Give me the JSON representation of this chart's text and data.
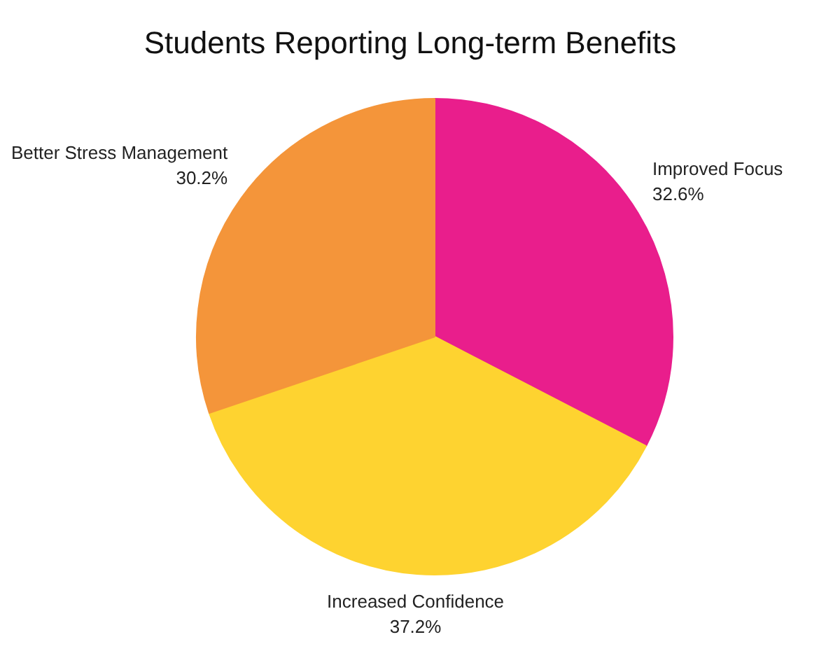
{
  "chart_data": {
    "type": "pie",
    "title": "Students Reporting Long-term Benefits",
    "categories": [
      "Improved Focus",
      "Increased Confidence",
      "Better Stress Management"
    ],
    "values": [
      32.6,
      37.2,
      30.2
    ],
    "value_labels": [
      "32.6%",
      "37.2%",
      "30.2%"
    ],
    "colors": [
      "#e91e8c",
      "#fed330",
      "#f4953a"
    ]
  }
}
